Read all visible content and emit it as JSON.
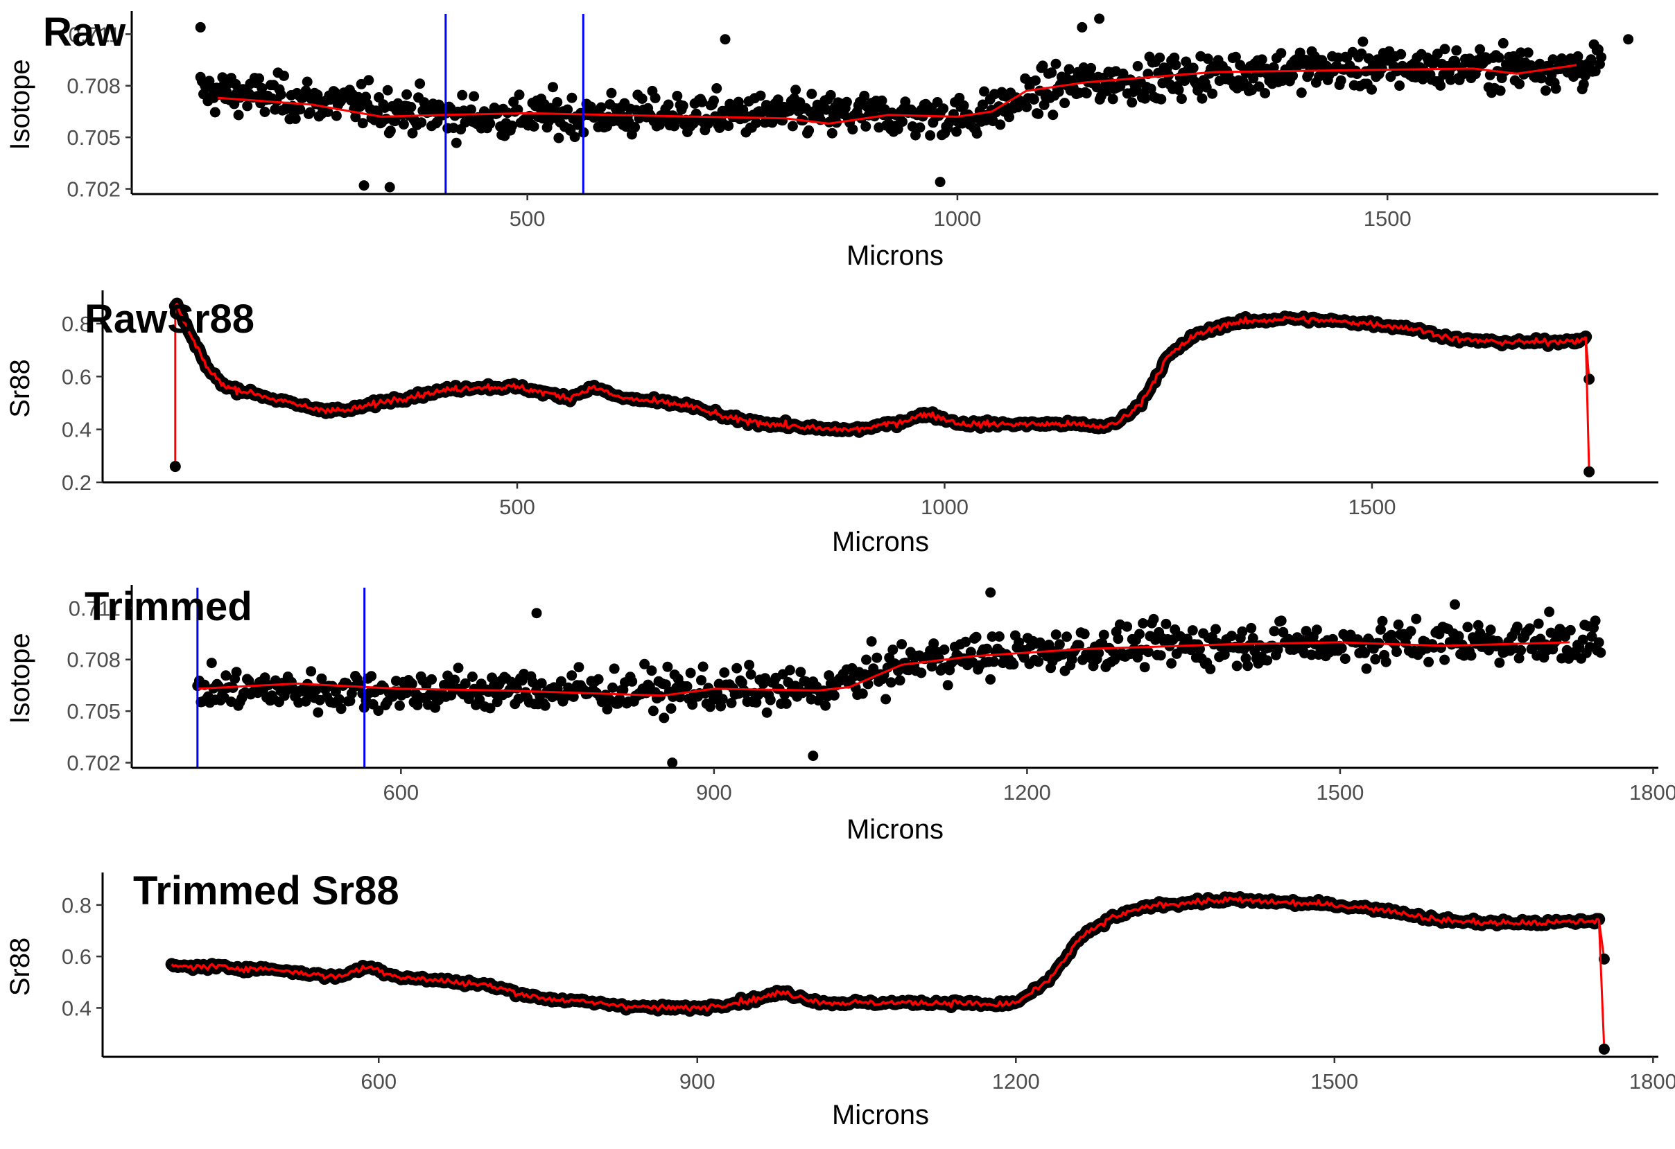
{
  "chart_data": [
    {
      "type": "scatter",
      "title": "Raw",
      "xlabel": "Microns",
      "ylabel": "Isotope",
      "xlim": [
        40,
        1815
      ],
      "ylim": [
        0.7017,
        0.7121
      ],
      "x_ticks": [
        500,
        1000,
        1500
      ],
      "y_ticks": [
        0.702,
        0.705,
        0.708,
        0.711
      ],
      "y_tick_labels": [
        "0.702",
        "0.705",
        "0.708",
        "0.711"
      ],
      "grid": false,
      "point_color": "#000000",
      "smooth_color": "#ff0000",
      "vline_color": "#0000ff",
      "vlines": [
        405,
        565
      ],
      "x_range": [
        120,
        1750
      ],
      "profile": [
        [
          120,
          0.7077
        ],
        [
          300,
          0.7069
        ],
        [
          420,
          0.7062
        ],
        [
          600,
          0.7063
        ],
        [
          900,
          0.7063
        ],
        [
          1020,
          0.7062
        ],
        [
          1120,
          0.708
        ],
        [
          1250,
          0.7085
        ],
        [
          1400,
          0.709
        ],
        [
          1750,
          0.7091
        ]
      ],
      "smooth": [
        [
          140,
          0.7073
        ],
        [
          250,
          0.7069
        ],
        [
          330,
          0.7062
        ],
        [
          400,
          0.7063
        ],
        [
          500,
          0.7064
        ],
        [
          600,
          0.7063
        ],
        [
          700,
          0.7062
        ],
        [
          800,
          0.7061
        ],
        [
          850,
          0.7058
        ],
        [
          920,
          0.7063
        ],
        [
          1000,
          0.7062
        ],
        [
          1040,
          0.7065
        ],
        [
          1080,
          0.7077
        ],
        [
          1150,
          0.7082
        ],
        [
          1250,
          0.7086
        ],
        [
          1300,
          0.7088
        ],
        [
          1450,
          0.7089
        ],
        [
          1600,
          0.709
        ],
        [
          1650,
          0.7087
        ],
        [
          1720,
          0.7092
        ]
      ],
      "outliers": [
        [
          120,
          0.7114
        ],
        [
          310,
          0.7022
        ],
        [
          340,
          0.7021
        ],
        [
          1165,
          0.7119
        ],
        [
          1145,
          0.7114
        ],
        [
          730,
          0.7107
        ],
        [
          980,
          0.7024
        ],
        [
          1780,
          0.7107
        ]
      ]
    },
    {
      "type": "line",
      "title": "RawSr88",
      "xlabel": "Microns",
      "ylabel": "Sr88",
      "xlim": [
        15,
        1835
      ],
      "ylim": [
        0.2,
        0.91
      ],
      "x_ticks": [
        500,
        1000,
        1500
      ],
      "y_ticks": [
        0.2,
        0.4,
        0.6,
        0.8
      ],
      "y_tick_labels": [
        "0.2",
        "0.4",
        "0.6",
        "0.8"
      ],
      "grid": false,
      "point_color": "#000000",
      "line_color": "#ff0000",
      "profile": [
        [
          100,
          0.88
        ],
        [
          120,
          0.74
        ],
        [
          140,
          0.62
        ],
        [
          160,
          0.56
        ],
        [
          200,
          0.53
        ],
        [
          220,
          0.51
        ],
        [
          260,
          0.48
        ],
        [
          300,
          0.47
        ],
        [
          350,
          0.51
        ],
        [
          420,
          0.55
        ],
        [
          450,
          0.56
        ],
        [
          500,
          0.56
        ],
        [
          560,
          0.52
        ],
        [
          590,
          0.56
        ],
        [
          620,
          0.52
        ],
        [
          700,
          0.49
        ],
        [
          750,
          0.44
        ],
        [
          800,
          0.42
        ],
        [
          860,
          0.4
        ],
        [
          900,
          0.4
        ],
        [
          950,
          0.43
        ],
        [
          980,
          0.46
        ],
        [
          1020,
          0.42
        ],
        [
          1100,
          0.42
        ],
        [
          1150,
          0.42
        ],
        [
          1180,
          0.41
        ],
        [
          1200,
          0.42
        ],
        [
          1230,
          0.5
        ],
        [
          1260,
          0.67
        ],
        [
          1290,
          0.75
        ],
        [
          1330,
          0.8
        ],
        [
          1400,
          0.82
        ],
        [
          1500,
          0.8
        ],
        [
          1550,
          0.78
        ],
        [
          1600,
          0.74
        ],
        [
          1650,
          0.73
        ],
        [
          1700,
          0.73
        ],
        [
          1750,
          0.74
        ]
      ],
      "end_points": [
        [
          100,
          0.26
        ],
        [
          1754,
          0.59
        ],
        [
          1754,
          0.24
        ]
      ]
    },
    {
      "type": "scatter",
      "title": "Trimmed",
      "xlabel": "Microns",
      "ylabel": "Isotope",
      "xlim": [
        342,
        1805
      ],
      "ylim": [
        0.7017,
        0.7121
      ],
      "x_ticks": [
        600,
        900,
        1200,
        1500,
        1800
      ],
      "y_ticks": [
        0.702,
        0.705,
        0.708,
        0.711
      ],
      "y_tick_labels": [
        "0.702",
        "0.705",
        "0.708",
        "0.711"
      ],
      "grid": false,
      "point_color": "#000000",
      "smooth_color": "#ff0000",
      "vline_color": "#0000ff",
      "vlines": [
        405,
        565
      ],
      "x_range": [
        405,
        1750
      ],
      "profile": [
        [
          405,
          0.7062
        ],
        [
          700,
          0.7062
        ],
        [
          1000,
          0.7062
        ],
        [
          1100,
          0.708
        ],
        [
          1300,
          0.7088
        ],
        [
          1750,
          0.7091
        ]
      ],
      "smooth": [
        [
          405,
          0.7063
        ],
        [
          500,
          0.7066
        ],
        [
          600,
          0.7063
        ],
        [
          700,
          0.7062
        ],
        [
          800,
          0.706
        ],
        [
          850,
          0.7059
        ],
        [
          900,
          0.7063
        ],
        [
          1000,
          0.7062
        ],
        [
          1030,
          0.7064
        ],
        [
          1080,
          0.7077
        ],
        [
          1150,
          0.7082
        ],
        [
          1250,
          0.7086
        ],
        [
          1400,
          0.7089
        ],
        [
          1500,
          0.709
        ],
        [
          1600,
          0.7088
        ],
        [
          1720,
          0.709
        ]
      ],
      "outliers": [
        [
          1165,
          0.7119
        ],
        [
          730,
          0.7107
        ],
        [
          860,
          0.702
        ],
        [
          1610,
          0.7112
        ],
        [
          995,
          0.7024
        ]
      ]
    },
    {
      "type": "line",
      "title": "Trimmed Sr88",
      "xlabel": "Microns",
      "ylabel": "Sr88",
      "xlim": [
        340,
        1805
      ],
      "ylim": [
        0.21,
        0.91
      ],
      "x_ticks": [
        600,
        900,
        1200,
        1500,
        1800
      ],
      "y_ticks": [
        0.4,
        0.6,
        0.8
      ],
      "y_tick_labels": [
        "0.4",
        "0.6",
        "0.8"
      ],
      "grid": false,
      "point_color": "#000000",
      "line_color": "#ff0000",
      "profile": [
        [
          405,
          0.56
        ],
        [
          440,
          0.56
        ],
        [
          500,
          0.55
        ],
        [
          560,
          0.52
        ],
        [
          590,
          0.56
        ],
        [
          620,
          0.52
        ],
        [
          700,
          0.49
        ],
        [
          750,
          0.44
        ],
        [
          800,
          0.42
        ],
        [
          860,
          0.4
        ],
        [
          900,
          0.4
        ],
        [
          950,
          0.43
        ],
        [
          980,
          0.46
        ],
        [
          1020,
          0.42
        ],
        [
          1100,
          0.42
        ],
        [
          1150,
          0.42
        ],
        [
          1180,
          0.41
        ],
        [
          1200,
          0.42
        ],
        [
          1230,
          0.5
        ],
        [
          1260,
          0.67
        ],
        [
          1290,
          0.75
        ],
        [
          1330,
          0.8
        ],
        [
          1400,
          0.82
        ],
        [
          1500,
          0.8
        ],
        [
          1550,
          0.78
        ],
        [
          1600,
          0.74
        ],
        [
          1650,
          0.73
        ],
        [
          1700,
          0.73
        ],
        [
          1750,
          0.74
        ]
      ],
      "end_points": [
        [
          1754,
          0.59
        ],
        [
          1754,
          0.24
        ]
      ]
    }
  ]
}
